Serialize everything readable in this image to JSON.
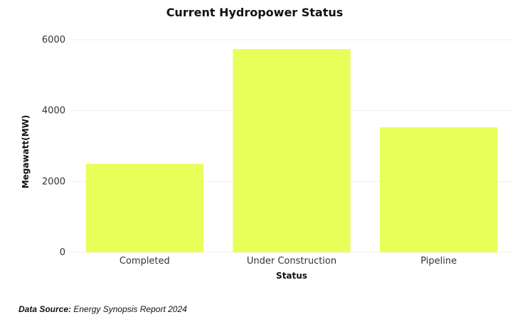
{
  "chart_data": {
    "type": "bar",
    "title": "Current Hydropower Status",
    "xlabel": "Status",
    "ylabel": "Megawatt(MW)",
    "categories": [
      "Completed",
      "Under Construction",
      "Pipeline"
    ],
    "values": [
      2500,
      5740,
      3530
    ],
    "ylim": [
      0,
      6000
    ],
    "yticks": [
      0,
      2000,
      4000,
      6000
    ],
    "bar_color": "#e8ff5a",
    "grid": true,
    "legend": false
  },
  "source": {
    "label": "Data Source:",
    "text": "Energy Synopsis Report 2024"
  }
}
